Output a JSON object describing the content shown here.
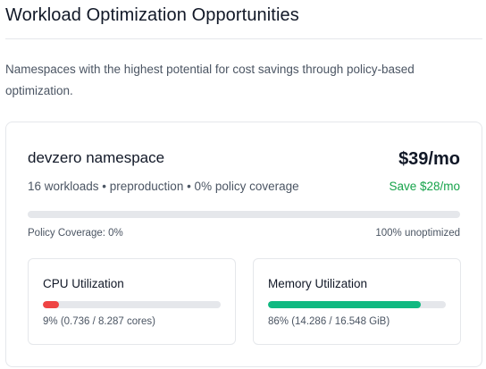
{
  "header": {
    "title": "Workload Optimization Opportunities",
    "description": "Namespaces with the highest potential for cost savings through policy-based optimization."
  },
  "namespace_card": {
    "name": "devzero namespace",
    "cost": "$39/mo",
    "meta": "16 workloads • preproduction • 0% policy coverage",
    "savings": "Save $28/mo",
    "coverage_percent": 0,
    "coverage_label": "Policy Coverage: 0%",
    "unoptimized_label": "100% unoptimized",
    "cpu": {
      "title": "CPU Utilization",
      "percent": 9,
      "value_text": "9% (0.736 / 8.287 cores)",
      "color": "#ef4444"
    },
    "memory": {
      "title": "Memory Utilization",
      "percent": 86,
      "value_text": "86% (14.286 / 16.548 GiB)",
      "color": "#10b981"
    }
  }
}
